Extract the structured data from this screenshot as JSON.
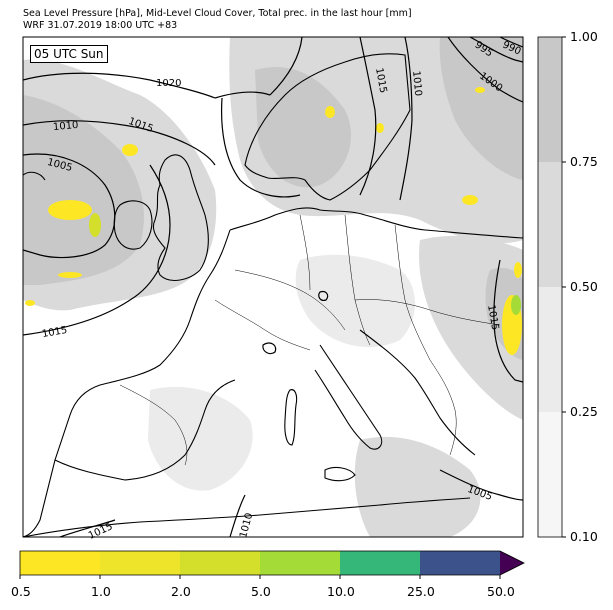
{
  "header": {
    "title_line1": "Sea Level Pressure [hPa], Mid-Level Cloud Cover, Total prec. in the last hour [mm]",
    "title_line2": "WRF 31.07.2019 18:00 UTC +83"
  },
  "map": {
    "time_label": "05 UTC Sun",
    "isobar_labels": [
      "1020",
      "1015",
      "1010",
      "1005",
      "1015",
      "995",
      "990",
      "1000",
      "1015",
      "1010",
      "1005",
      "1015",
      "1010",
      "1015"
    ]
  },
  "cloud_colorbar": {
    "ticks": [
      "1.00",
      "0.75",
      "0.50",
      "0.25",
      "0.10"
    ],
    "bands": [
      "#c8c8c8",
      "#dadada",
      "#ebebeb",
      "#f6f6f6"
    ]
  },
  "precip_colorbar": {
    "ticks": [
      "0.5",
      "1.0",
      "2.0",
      "5.0",
      "10.0",
      "25.0",
      "50.0"
    ],
    "colors": [
      "#fde725",
      "#eee52a",
      "#d3df2b",
      "#a5db36",
      "#35b779",
      "#3b528b",
      "#440154"
    ]
  },
  "colors": {
    "frame": "#000000",
    "land_outline": "#000000",
    "cloud_light": "#ebebeb",
    "cloud_mid": "#dadada",
    "cloud_dark": "#c8c8c8",
    "precip_light": "#fde725"
  }
}
